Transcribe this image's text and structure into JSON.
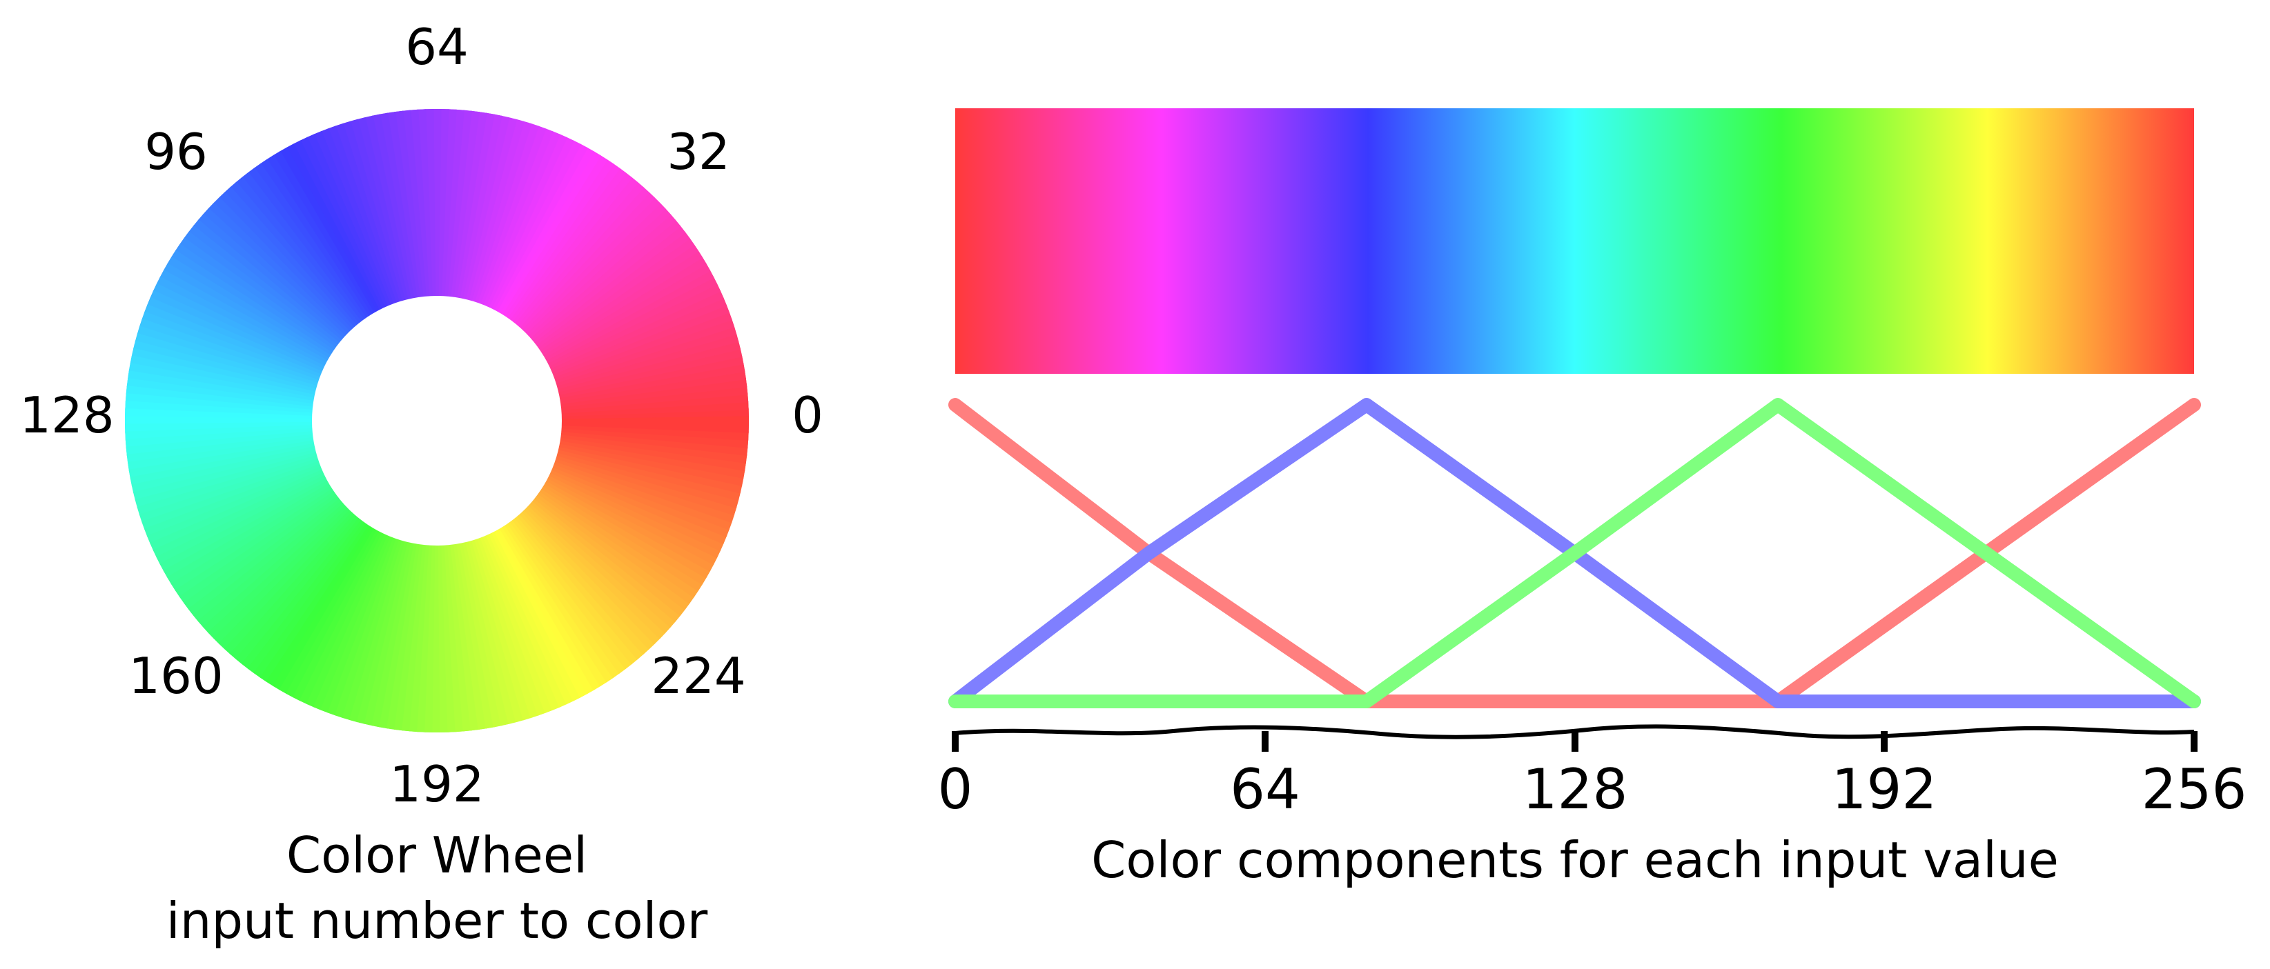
{
  "wheel": {
    "labels": [
      "0",
      "32",
      "64",
      "96",
      "128",
      "160",
      "192",
      "224"
    ],
    "caption_line1": "Color Wheel",
    "caption_line2": "input number to color"
  },
  "strip": {
    "axis_ticks": [
      "0",
      "64",
      "128",
      "192",
      "256"
    ],
    "caption": "Color components for each input value"
  },
  "chart_data": {
    "type": "line",
    "x_range": [
      0,
      256
    ],
    "x_ticks": [
      0,
      64,
      128,
      192,
      256
    ],
    "xlabel": "Color components for each input value",
    "series": [
      {
        "color": "#ff7f7f",
        "x": [
          0,
          40,
          85,
          128,
          170,
          213,
          256
        ],
        "y": [
          1.0,
          0.5,
          0.0,
          0.0,
          0.0,
          0.5,
          1.0
        ]
      },
      {
        "color": "#7f7fff",
        "x": [
          0,
          40,
          85,
          128,
          170,
          213,
          256
        ],
        "y": [
          0.0,
          0.5,
          1.0,
          0.5,
          0.0,
          0.0,
          0.0
        ]
      },
      {
        "color": "#7fff7f",
        "x": [
          0,
          40,
          85,
          128,
          170,
          213,
          256
        ],
        "y": [
          0.0,
          0.0,
          0.0,
          0.5,
          1.0,
          0.5,
          0.0
        ]
      }
    ]
  }
}
